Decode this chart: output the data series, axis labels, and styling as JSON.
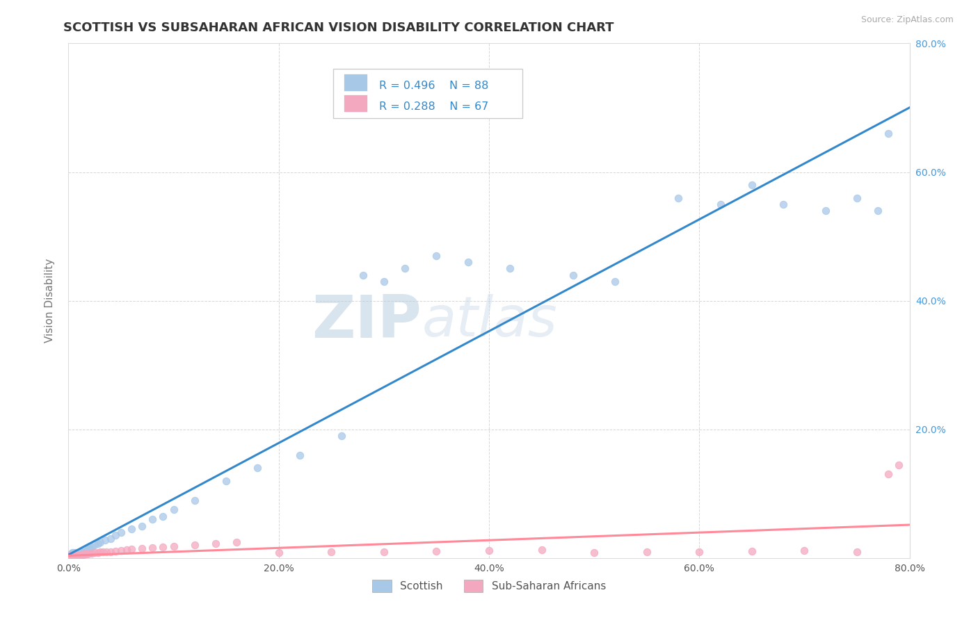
{
  "title": "SCOTTISH VS SUBSAHARAN AFRICAN VISION DISABILITY CORRELATION CHART",
  "source_text": "Source: ZipAtlas.com",
  "ylabel": "Vision Disability",
  "xlim": [
    0.0,
    0.8
  ],
  "ylim": [
    0.0,
    0.8
  ],
  "background_color": "#ffffff",
  "grid_color": "#cccccc",
  "legend_r1": "R = 0.496",
  "legend_n1": "N = 88",
  "legend_r2": "R = 0.288",
  "legend_n2": "N = 67",
  "scottish_color": "#a8c8e8",
  "subsaharan_color": "#f4a8c0",
  "scottish_line_color": "#3388cc",
  "subsaharan_line_color": "#ff8899",
  "tick_color": "#4499dd",
  "title_fontsize": 13,
  "axis_label_fontsize": 11,
  "tick_fontsize": 10,
  "scottish_x": [
    0.001,
    0.001,
    0.001,
    0.001,
    0.002,
    0.002,
    0.002,
    0.002,
    0.002,
    0.003,
    0.003,
    0.003,
    0.003,
    0.003,
    0.003,
    0.003,
    0.004,
    0.004,
    0.004,
    0.004,
    0.004,
    0.004,
    0.005,
    0.005,
    0.005,
    0.005,
    0.005,
    0.006,
    0.006,
    0.006,
    0.006,
    0.007,
    0.007,
    0.007,
    0.007,
    0.008,
    0.008,
    0.008,
    0.009,
    0.009,
    0.01,
    0.01,
    0.011,
    0.011,
    0.012,
    0.012,
    0.013,
    0.014,
    0.015,
    0.016,
    0.017,
    0.018,
    0.019,
    0.02,
    0.022,
    0.025,
    0.028,
    0.03,
    0.035,
    0.04,
    0.045,
    0.05,
    0.06,
    0.07,
    0.08,
    0.09,
    0.1,
    0.12,
    0.15,
    0.18,
    0.22,
    0.26,
    0.28,
    0.3,
    0.32,
    0.35,
    0.38,
    0.42,
    0.48,
    0.52,
    0.58,
    0.62,
    0.65,
    0.68,
    0.72,
    0.75,
    0.77,
    0.78
  ],
  "scottish_y": [
    0.001,
    0.002,
    0.003,
    0.004,
    0.001,
    0.002,
    0.003,
    0.004,
    0.005,
    0.001,
    0.002,
    0.003,
    0.004,
    0.005,
    0.006,
    0.007,
    0.002,
    0.003,
    0.004,
    0.005,
    0.006,
    0.008,
    0.003,
    0.004,
    0.005,
    0.006,
    0.008,
    0.003,
    0.004,
    0.005,
    0.007,
    0.003,
    0.004,
    0.006,
    0.008,
    0.004,
    0.005,
    0.007,
    0.005,
    0.007,
    0.005,
    0.008,
    0.006,
    0.009,
    0.007,
    0.01,
    0.008,
    0.009,
    0.01,
    0.011,
    0.012,
    0.013,
    0.014,
    0.015,
    0.017,
    0.02,
    0.022,
    0.025,
    0.028,
    0.03,
    0.035,
    0.04,
    0.045,
    0.05,
    0.06,
    0.065,
    0.075,
    0.09,
    0.12,
    0.14,
    0.16,
    0.19,
    0.44,
    0.43,
    0.45,
    0.47,
    0.46,
    0.45,
    0.44,
    0.43,
    0.56,
    0.55,
    0.58,
    0.55,
    0.54,
    0.56,
    0.54,
    0.66
  ],
  "subsaharan_x": [
    0.001,
    0.001,
    0.001,
    0.002,
    0.002,
    0.002,
    0.002,
    0.003,
    0.003,
    0.003,
    0.003,
    0.004,
    0.004,
    0.004,
    0.005,
    0.005,
    0.005,
    0.005,
    0.006,
    0.006,
    0.006,
    0.007,
    0.007,
    0.008,
    0.008,
    0.009,
    0.01,
    0.011,
    0.012,
    0.013,
    0.014,
    0.015,
    0.016,
    0.018,
    0.02,
    0.022,
    0.025,
    0.028,
    0.03,
    0.033,
    0.036,
    0.04,
    0.045,
    0.05,
    0.055,
    0.06,
    0.07,
    0.08,
    0.09,
    0.1,
    0.12,
    0.14,
    0.16,
    0.2,
    0.25,
    0.3,
    0.35,
    0.4,
    0.45,
    0.5,
    0.55,
    0.6,
    0.65,
    0.7,
    0.75,
    0.78,
    0.79
  ],
  "subsaharan_y": [
    0.001,
    0.002,
    0.003,
    0.001,
    0.002,
    0.003,
    0.004,
    0.001,
    0.002,
    0.003,
    0.004,
    0.002,
    0.003,
    0.004,
    0.002,
    0.003,
    0.004,
    0.005,
    0.002,
    0.003,
    0.004,
    0.003,
    0.004,
    0.003,
    0.005,
    0.004,
    0.004,
    0.005,
    0.004,
    0.005,
    0.005,
    0.006,
    0.006,
    0.006,
    0.007,
    0.007,
    0.008,
    0.008,
    0.009,
    0.009,
    0.01,
    0.01,
    0.011,
    0.012,
    0.013,
    0.014,
    0.015,
    0.016,
    0.017,
    0.018,
    0.02,
    0.022,
    0.025,
    0.008,
    0.009,
    0.01,
    0.011,
    0.012,
    0.013,
    0.008,
    0.01,
    0.009,
    0.011,
    0.012,
    0.01,
    0.13,
    0.145
  ]
}
